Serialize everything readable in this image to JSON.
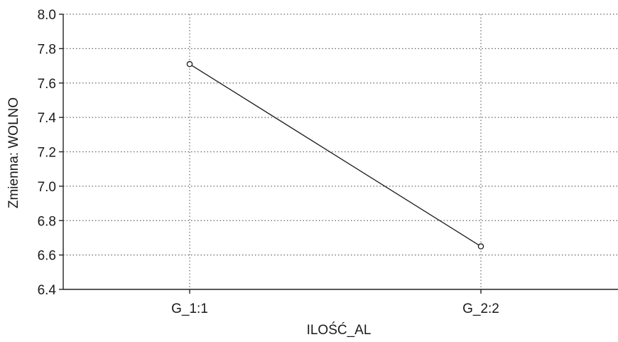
{
  "chart_data": {
    "type": "line",
    "categories": [
      "G_1:1",
      "G_2:2"
    ],
    "series": [
      {
        "values": [
          7.71,
          6.65
        ]
      }
    ],
    "xlabel": "ILOŚĆ_AL",
    "ylabel": "Zmienna: WOLNO",
    "ylim": [
      6.4,
      8.0
    ],
    "yticks": [
      6.4,
      6.6,
      6.8,
      7.0,
      7.2,
      7.4,
      7.6,
      7.8,
      8.0
    ],
    "ytick_labels": [
      "6.4",
      "6.6",
      "6.8",
      "7.0",
      "7.2",
      "7.4",
      "7.6",
      "7.8",
      "8.0"
    ],
    "grid": true
  }
}
